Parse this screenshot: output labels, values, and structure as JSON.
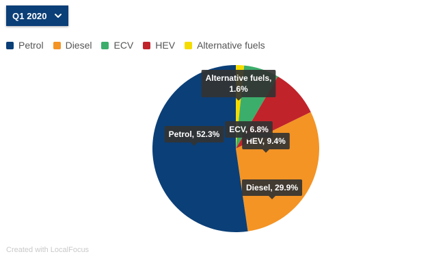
{
  "dropdown": {
    "selected": "Q1 2020",
    "icon": "chevron-down-icon"
  },
  "colors": {
    "Petrol": "#0b3f77",
    "Diesel": "#f39425",
    "ECV": "#3cae6b",
    "HEV": "#c1232b",
    "Alternative fuels": "#f5dc00"
  },
  "chart_data": {
    "type": "pie",
    "title": "",
    "legend_position": "top-left",
    "start": "top",
    "direction": "clockwise",
    "slices": [
      {
        "name": "Alternative fuels",
        "value": 1.6,
        "label": "Alternative fuels,",
        "label2": "1.6%"
      },
      {
        "name": "ECV",
        "value": 6.8,
        "label": "ECV, 6.8%"
      },
      {
        "name": "HEV",
        "value": 9.4,
        "label": "HEV, 9.4%"
      },
      {
        "name": "Diesel",
        "value": 29.9,
        "label": "Diesel, 29.9%"
      },
      {
        "name": "Petrol",
        "value": 52.3,
        "label": "Petrol, 52.3%"
      }
    ],
    "legend": [
      "Petrol",
      "Diesel",
      "ECV",
      "HEV",
      "Alternative fuels"
    ]
  },
  "credit": "Created with LocalFocus"
}
